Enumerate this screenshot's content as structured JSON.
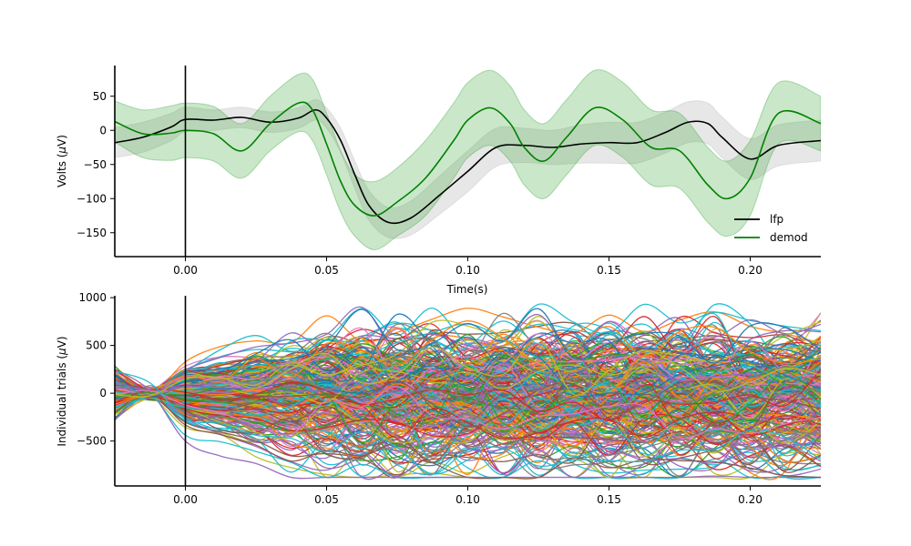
{
  "chart_data": [
    {
      "type": "line",
      "xlabel": "Time(s)",
      "ylabel_prefix": "Volts (",
      "ylabel_mu": "μ",
      "ylabel_suffix": "V)",
      "xlim": [
        -0.025,
        0.225
      ],
      "ylim": [
        -185,
        95
      ],
      "xticks": [
        0.0,
        0.05,
        0.1,
        0.15,
        0.2
      ],
      "xtick_labels": [
        "0.00",
        "0.05",
        "0.10",
        "0.15",
        "0.20"
      ],
      "yticks": [
        50,
        0,
        -50,
        -100,
        -150
      ],
      "ytick_labels": [
        "50",
        "0",
        "−50",
        "−100",
        "−150"
      ],
      "vline_x": 0.0,
      "legend": {
        "placement": "lower-right",
        "entries": [
          "lfp",
          "demod"
        ]
      },
      "series": [
        {
          "name": "lfp",
          "color": "#000000",
          "band_color": "#bbbbbb",
          "x": [
            -0.025,
            -0.015,
            -0.005,
            0.0,
            0.01,
            0.02,
            0.03,
            0.04,
            0.046,
            0.05,
            0.055,
            0.06,
            0.065,
            0.072,
            0.08,
            0.09,
            0.1,
            0.11,
            0.12,
            0.13,
            0.14,
            0.15,
            0.16,
            0.17,
            0.178,
            0.185,
            0.19,
            0.2,
            0.21,
            0.225
          ],
          "y": [
            -18,
            -10,
            5,
            16,
            15,
            19,
            12,
            18,
            30,
            18,
            -15,
            -65,
            -110,
            -135,
            -128,
            -95,
            -60,
            -25,
            -22,
            -25,
            -20,
            -18,
            -18,
            -3,
            12,
            10,
            -10,
            -42,
            -22,
            -15
          ],
          "band": [
            22,
            22,
            20,
            18,
            15,
            15,
            15,
            15,
            15,
            15,
            18,
            20,
            22,
            22,
            25,
            28,
            30,
            28,
            25,
            25,
            28,
            30,
            30,
            30,
            30,
            30,
            30,
            30,
            30,
            30
          ]
        },
        {
          "name": "demod",
          "color": "#008000",
          "band_color": "#2ca02c",
          "x": [
            -0.025,
            -0.015,
            -0.005,
            0.0,
            0.01,
            0.02,
            0.03,
            0.04,
            0.045,
            0.05,
            0.055,
            0.06,
            0.067,
            0.075,
            0.085,
            0.095,
            0.1,
            0.108,
            0.115,
            0.12,
            0.127,
            0.135,
            0.145,
            0.155,
            0.165,
            0.175,
            0.185,
            0.192,
            0.2,
            0.21,
            0.225
          ],
          "y": [
            13,
            -5,
            -4,
            0,
            -5,
            -30,
            10,
            40,
            30,
            -20,
            -75,
            -110,
            -125,
            -105,
            -70,
            -15,
            15,
            33,
            10,
            -25,
            -45,
            -10,
            33,
            15,
            -25,
            -30,
            -80,
            -100,
            -70,
            25,
            10
          ],
          "band": [
            30,
            35,
            40,
            40,
            40,
            40,
            40,
            42,
            45,
            45,
            45,
            45,
            50,
            50,
            55,
            55,
            55,
            55,
            55,
            55,
            55,
            55,
            55,
            55,
            55,
            55,
            55,
            55,
            55,
            45,
            40
          ]
        }
      ]
    },
    {
      "type": "line",
      "xlabel": "",
      "ylabel_prefix": "Individual trials (",
      "ylabel_mu": "μ",
      "ylabel_suffix": "V)",
      "xlim": [
        -0.025,
        0.225
      ],
      "ylim": [
        -970,
        1020
      ],
      "xticks": [
        0.0,
        0.05,
        0.1,
        0.15,
        0.2
      ],
      "xtick_labels": [
        "0.00",
        "0.05",
        "0.10",
        "0.15",
        "0.20"
      ],
      "yticks": [
        1000,
        500,
        0,
        -500
      ],
      "ytick_labels": [
        "1000",
        "500",
        "0",
        "−500"
      ],
      "vline_x": 0.0,
      "n_trials": 300,
      "trial_colors": [
        "#1f77b4",
        "#ff7f0e",
        "#2ca02c",
        "#d62728",
        "#9467bd",
        "#8c564b",
        "#e377c2",
        "#7f7f7f",
        "#bcbd22",
        "#17becf"
      ]
    }
  ]
}
